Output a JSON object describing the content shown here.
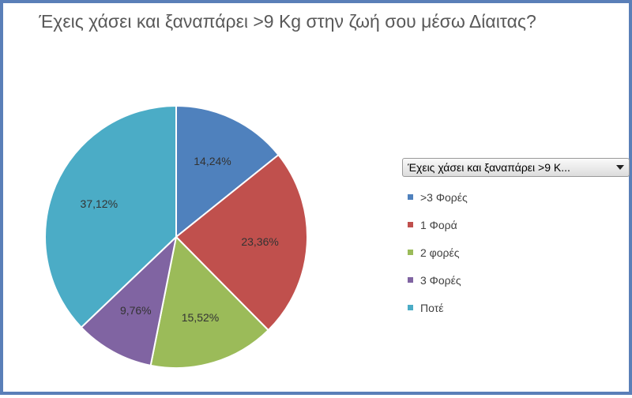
{
  "chart_data": {
    "type": "pie",
    "title": "Έχεις χάσει και ξαναπάρει >9 Kg στην ζωή σου μέσω Δίαιτας?",
    "legend_header": "Έχεις χάσει και ξαναπάρει >9 K...",
    "legend_position": "right",
    "categories": [
      ">3 Φορές",
      "1 Φορά",
      "2 φορές",
      "3 Φορές",
      "Ποτέ"
    ],
    "values": [
      14.24,
      23.36,
      15.52,
      9.76,
      37.12
    ],
    "value_labels": [
      "14,24%",
      "23,36%",
      "15,52%",
      "9,76%",
      "37,12%"
    ],
    "colors": [
      "#4f81bd",
      "#c0504d",
      "#9bbb59",
      "#8064a2",
      "#4bacc6"
    ]
  }
}
